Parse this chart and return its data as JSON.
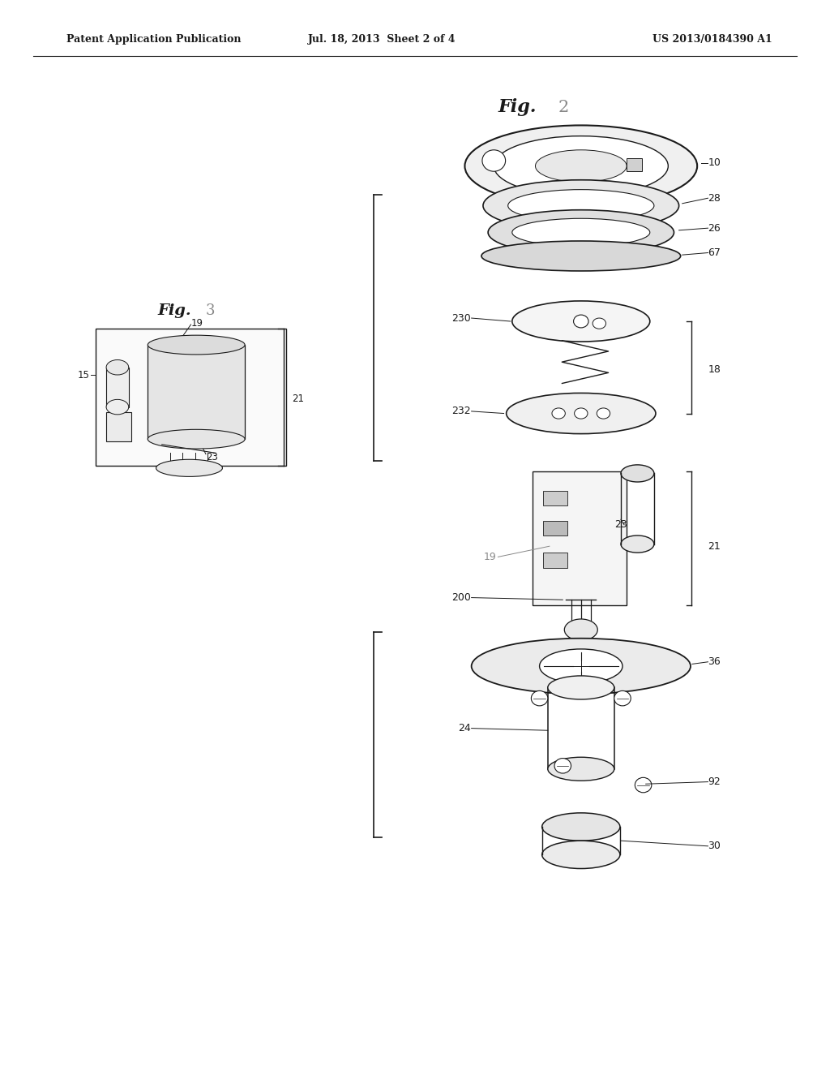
{
  "header_left": "Patent Application Publication",
  "header_center": "Jul. 18, 2013  Sheet 2 of 4",
  "header_right": "US 2013/0184390 A1",
  "fig2_title_bold": "Fig.",
  "fig2_title_num": "2",
  "fig3_title_bold": "Fig.",
  "fig3_title_num": "3",
  "background_color": "#ffffff",
  "line_color": "#1a1a1a",
  "gray_label_color": "#888888"
}
